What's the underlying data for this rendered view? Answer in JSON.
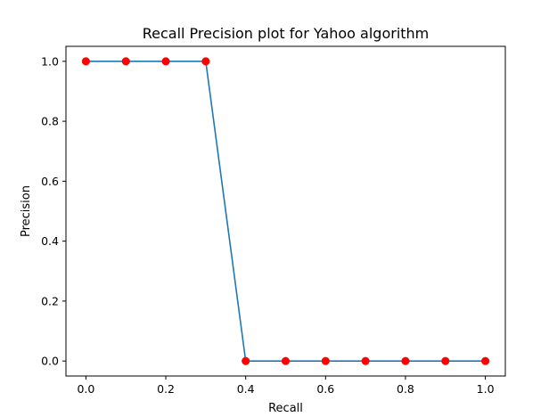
{
  "chart_data": {
    "type": "line",
    "title": "Recall Precision plot for Yahoo algorithm",
    "xlabel": "Recall",
    "ylabel": "Precision",
    "x": [
      0.0,
      0.1,
      0.2,
      0.3,
      0.4,
      0.5,
      0.6,
      0.7,
      0.8,
      0.9,
      1.0
    ],
    "series": [
      {
        "values": [
          1.0,
          1.0,
          1.0,
          1.0,
          0.0,
          0.0,
          0.0,
          0.0,
          0.0,
          0.0,
          0.0
        ],
        "line_color": "#1f77b4",
        "marker_color": "#ff0000"
      }
    ],
    "xticks": [
      0.0,
      0.2,
      0.4,
      0.6,
      0.8,
      1.0
    ],
    "xtick_labels": [
      "0.0",
      "0.2",
      "0.4",
      "0.6",
      "0.8",
      "1.0"
    ],
    "yticks": [
      0.0,
      0.2,
      0.4,
      0.6,
      0.8,
      1.0
    ],
    "ytick_labels": [
      "0.0",
      "0.2",
      "0.4",
      "0.6",
      "0.8",
      "1.0"
    ],
    "xlim": [
      -0.05,
      1.05
    ],
    "ylim": [
      -0.05,
      1.05
    ],
    "grid": false,
    "legend": "none"
  }
}
